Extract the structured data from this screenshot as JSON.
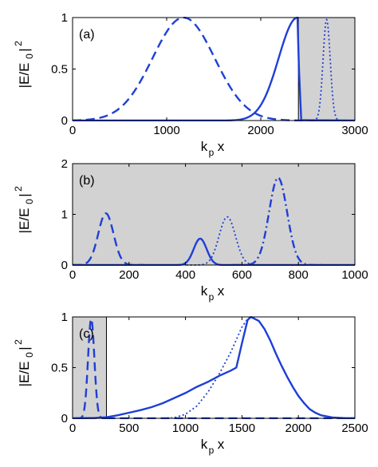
{
  "chart_data": [
    {
      "type": "line",
      "panel_label": "(a)",
      "xlabel": "k",
      "xlabel_sub": "p",
      "xlabel_tail": "x",
      "ylabel": "|E/E",
      "ylabel_sub": "0",
      "ylabel_tail": "|",
      "ylabel_sup": "2",
      "xlim": [
        0,
        3000
      ],
      "ylim": [
        0,
        1
      ],
      "xticks": [
        0,
        1000,
        2000,
        3000
      ],
      "yticks": [
        0,
        0.5,
        1
      ],
      "shaded": [
        2400,
        3000
      ],
      "series": [
        {
          "style": "dashed",
          "kind": "gauss",
          "center": 1180,
          "sigma": 330,
          "amp": 1.0
        },
        {
          "style": "solid",
          "kind": "front",
          "center": 2390,
          "sigma_left": 200,
          "drop_end": 2430,
          "amp": 1.0
        },
        {
          "style": "dotted",
          "kind": "gauss",
          "center": 2700,
          "sigma": 38,
          "amp": 0.98
        }
      ]
    },
    {
      "type": "line",
      "panel_label": "(b)",
      "xlabel": "k",
      "xlabel_sub": "p",
      "xlabel_tail": "x",
      "ylabel": "|E/E",
      "ylabel_sub": "0",
      "ylabel_tail": "|",
      "ylabel_sup": "2",
      "xlim": [
        0,
        1000
      ],
      "ylim": [
        0,
        2
      ],
      "xticks": [
        0,
        200,
        400,
        600,
        800,
        1000
      ],
      "yticks": [
        0,
        1,
        2
      ],
      "shaded": [
        0,
        1000
      ],
      "series": [
        {
          "style": "dashed",
          "kind": "gauss",
          "center": 118,
          "sigma": 27,
          "amp": 1.02
        },
        {
          "style": "solid",
          "kind": "gauss",
          "center": 452,
          "sigma": 23,
          "amp": 0.52
        },
        {
          "style": "dotted",
          "kind": "gauss",
          "center": 548,
          "sigma": 29,
          "amp": 0.95
        },
        {
          "style": "dashdot",
          "kind": "gauss",
          "center": 728,
          "sigma": 32,
          "amp": 1.72
        }
      ]
    },
    {
      "type": "line",
      "panel_label": "(c)",
      "xlabel": "k",
      "xlabel_sub": "p",
      "xlabel_tail": "x",
      "ylabel": "|E/E",
      "ylabel_sub": "0",
      "ylabel_tail": "|",
      "ylabel_sup": "2",
      "xlim": [
        0,
        2500
      ],
      "ylim": [
        0,
        1
      ],
      "xticks": [
        0,
        500,
        1000,
        1500,
        2000,
        2500
      ],
      "yticks": [
        0,
        0.5,
        1
      ],
      "shaded": [
        0,
        300
      ],
      "series": [
        {
          "style": "dashed",
          "kind": "gauss",
          "center": 165,
          "sigma": 28,
          "amp": 0.98
        },
        {
          "style": "dashed",
          "kind": "baseline",
          "from": 300,
          "to": 2500,
          "amp": 0.0
        },
        {
          "style": "solid",
          "kind": "points",
          "points": [
            [
              0,
              0
            ],
            [
              200,
              0.003
            ],
            [
              300,
              0.01
            ],
            [
              400,
              0.03
            ],
            [
              500,
              0.055
            ],
            [
              600,
              0.08
            ],
            [
              700,
              0.11
            ],
            [
              800,
              0.15
            ],
            [
              900,
              0.2
            ],
            [
              1000,
              0.25
            ],
            [
              1100,
              0.31
            ],
            [
              1200,
              0.36
            ],
            [
              1300,
              0.42
            ],
            [
              1400,
              0.47
            ],
            [
              1450,
              0.5
            ],
            [
              1500,
              0.74
            ],
            [
              1550,
              0.97
            ],
            [
              1580,
              1.0
            ],
            [
              1650,
              0.96
            ],
            [
              1700,
              0.88
            ],
            [
              1750,
              0.77
            ],
            [
              1800,
              0.64
            ],
            [
              1850,
              0.52
            ],
            [
              1900,
              0.41
            ],
            [
              1950,
              0.31
            ],
            [
              2000,
              0.22
            ],
            [
              2050,
              0.15
            ],
            [
              2100,
              0.09
            ],
            [
              2150,
              0.055
            ],
            [
              2200,
              0.03
            ],
            [
              2300,
              0.008
            ],
            [
              2400,
              0.002
            ],
            [
              2500,
              0
            ]
          ]
        },
        {
          "style": "dotted",
          "kind": "points",
          "points": [
            [
              800,
              0
            ],
            [
              900,
              0.005
            ],
            [
              1000,
              0.04
            ],
            [
              1100,
              0.12
            ],
            [
              1200,
              0.26
            ],
            [
              1300,
              0.44
            ],
            [
              1400,
              0.65
            ],
            [
              1500,
              0.9
            ],
            [
              1550,
              0.98
            ],
            [
              1580,
              1.0
            ],
            [
              1650,
              0.96
            ],
            [
              1700,
              0.88
            ],
            [
              1750,
              0.77
            ],
            [
              1800,
              0.64
            ],
            [
              1850,
              0.52
            ],
            [
              1900,
              0.41
            ],
            [
              1950,
              0.31
            ],
            [
              2000,
              0.22
            ],
            [
              2050,
              0.15
            ],
            [
              2100,
              0.09
            ],
            [
              2150,
              0.055
            ],
            [
              2200,
              0.03
            ],
            [
              2300,
              0.008
            ],
            [
              2400,
              0.002
            ],
            [
              2500,
              0
            ]
          ]
        }
      ]
    }
  ],
  "colors": {
    "line": "#1f3fd6",
    "shade": "#d2d2d2",
    "axis": "#000000"
  }
}
